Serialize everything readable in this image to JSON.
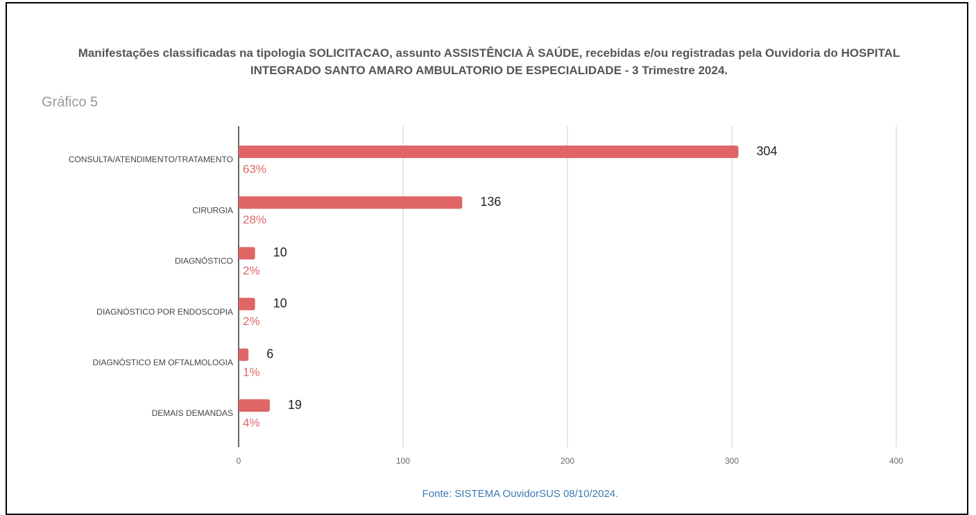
{
  "chart_data": {
    "type": "hbar",
    "title": "Manifestações classificadas na tipologia SOLICITACAO, assunto ASSISTÊNCIA À SAÚDE, recebidas e/ou registradas pela Ouvidoria do HOSPITAL INTEGRADO SANTO AMARO AMBULATORIO DE ESPECIALIDADE - 3 Trimestre 2024.",
    "subtitle": "Gráfico 5",
    "categories": [
      "CONSULTA/ATENDIMENTO/TRATAMENTO",
      "CIRURGIA",
      "DIAGNÓSTICO",
      "DIAGNÓSTICO POR ENDOSCOPIA",
      "DIAGNÓSTICO EM OFTALMOLOGIA",
      "DEMAIS DEMANDAS"
    ],
    "values": [
      304,
      136,
      10,
      10,
      6,
      19
    ],
    "percent_labels": [
      "63%",
      "28%",
      "2%",
      "2%",
      "1%",
      "4%"
    ],
    "color": "#e06666",
    "xlim": [
      0,
      400
    ],
    "xticks": [
      0,
      100,
      200,
      300,
      400
    ],
    "grid": true,
    "source": "Fonte: SISTEMA OuvidorSUS 08/10/2024."
  }
}
